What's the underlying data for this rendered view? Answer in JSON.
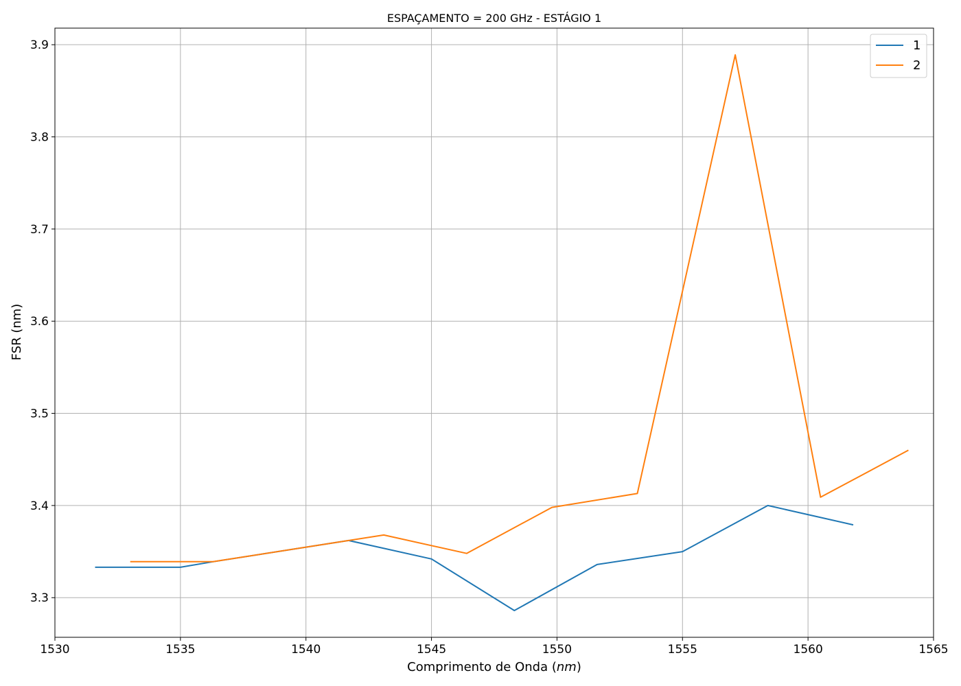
{
  "chart_data": {
    "type": "line",
    "title": "ESPAÇAMENTO = 200 GHz - ESTÁGIO 1",
    "xlabel_prefix": "Comprimento de Onda (",
    "xlabel_unit": "nm",
    "xlabel_suffix": ")",
    "ylabel": "FSR (nm)",
    "xlim": [
      1530,
      1565
    ],
    "ylim": [
      3.257,
      3.918
    ],
    "xticks": [
      1530,
      1535,
      1540,
      1545,
      1550,
      1555,
      1560,
      1565
    ],
    "yticks": [
      3.3,
      3.4,
      3.5,
      3.6,
      3.7,
      3.8,
      3.9
    ],
    "grid": true,
    "legend_position": "top-right",
    "series": [
      {
        "name": "1",
        "color": "#1f77b4",
        "x": [
          1531.6,
          1535.0,
          1536.3,
          1541.7,
          1545.0,
          1548.3,
          1551.6,
          1555.0,
          1558.4,
          1561.8
        ],
        "y": [
          3.333,
          3.333,
          3.339,
          3.362,
          3.342,
          3.286,
          3.336,
          3.35,
          3.4,
          3.379
        ]
      },
      {
        "name": "2",
        "color": "#ff7f0e",
        "x": [
          1533.0,
          1536.3,
          1541.7,
          1543.1,
          1546.4,
          1549.8,
          1553.2,
          1557.1,
          1560.5,
          1564.0
        ],
        "y": [
          3.339,
          3.339,
          3.362,
          3.368,
          3.348,
          3.398,
          3.413,
          3.889,
          3.409,
          3.46
        ]
      }
    ]
  }
}
